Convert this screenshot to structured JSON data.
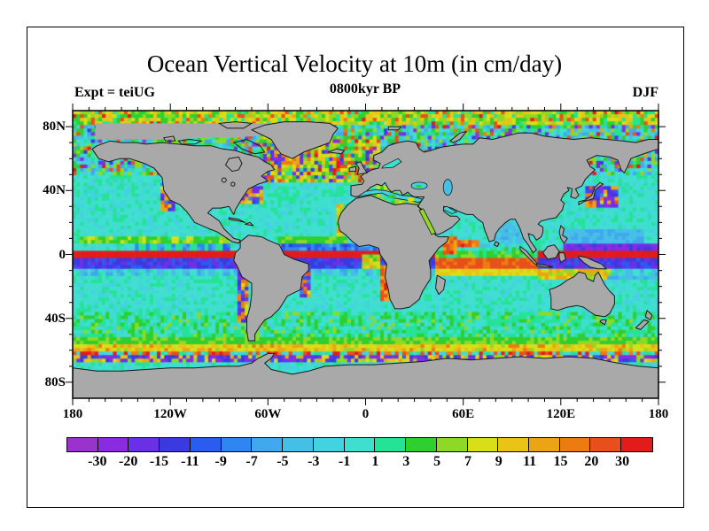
{
  "title": "Ocean Vertical Velocity at 10m (in cm/day)",
  "subtitle": "0800kyr BP",
  "experiment_label": "Expt = teiUG",
  "season_label": "DJF",
  "axes": {
    "lat_tick_labels": [
      "80N",
      "40N",
      "0",
      "40S",
      "80S"
    ],
    "lat_tick_values": [
      80,
      40,
      0,
      -40,
      -80
    ],
    "lon_tick_labels": [
      "180",
      "120W",
      "60W",
      "0",
      "60E",
      "120E",
      "180"
    ],
    "lon_tick_values": [
      -180,
      -120,
      -60,
      0,
      60,
      120,
      180
    ],
    "minor_tick_interval_deg": 10
  },
  "colorbar": {
    "boundary_labels": [
      "-30",
      "-20",
      "-15",
      "-11",
      "-9",
      "-7",
      "-5",
      "-3",
      "-1",
      "1",
      "3",
      "5",
      "7",
      "9",
      "11",
      "15",
      "20",
      "30"
    ]
  },
  "chart_data": {
    "type": "heatmap",
    "title": "Ocean Vertical Velocity at 10m (in cm/day)",
    "subtitle": "0800kyr BP",
    "experiment": "teiUG",
    "season": "DJF",
    "units": "cm/day",
    "projection": "equirectangular",
    "lon_range": [
      -180,
      180
    ],
    "lat_range": [
      -90,
      90
    ],
    "contour_levels": [
      -30,
      -20,
      -15,
      -11,
      -9,
      -7,
      -5,
      -3,
      -1,
      1,
      3,
      5,
      7,
      9,
      11,
      15,
      20,
      30
    ],
    "palette": [
      "#9933cc",
      "#8a2be2",
      "#6a30e8",
      "#3a3ae0",
      "#2a5cf0",
      "#2e86f0",
      "#3fa8ee",
      "#46bfe6",
      "#43d2df",
      "#3fdfcf",
      "#25e396",
      "#2ecf2e",
      "#8fd926",
      "#d8de17",
      "#e9c414",
      "#eda414",
      "#ec7c12",
      "#e84f1a",
      "#e31b1b"
    ],
    "land_color": "#a9a9a9",
    "coastline_color": "#1a1a1a",
    "legend_position": "bottom",
    "grid": false,
    "features": [
      "Strong upwelling band (red, >30 cm/day) along the equator across the Pacific and Atlantic",
      "Strong downwelling band (purple/blue, -9 to -30 cm/day) just south of the equator and in the western equatorial Pacific near 3-6N",
      "Red/orange upwelling band near 3-8S across the Indian Ocean",
      "Yellow-green upwelling band near 6-11N in the eastern Pacific ITCZ",
      "Circumpolar green (50-57S) and yellow (57-62S) upwelling bands with a thin discontinuous red streak near 61S",
      "Purple/blue downwelling patches along the Antarctic coast near 63-66S",
      "Very noisy strong up/downwelling in the North Atlantic, Arctic and along most coastlines and western boundary currents",
      "Alternating striped up/down cells (tropical instability waves) flanking the equatorial bands",
      "Quiet interior ocean near zero velocity (cyan, -3 to +3 cm/day)",
      "Continents and ice-masked Arctic shown in gray with black coastlines; Mediterranean, Black, Caspian, Baltic and Red Seas remain colored"
    ]
  }
}
